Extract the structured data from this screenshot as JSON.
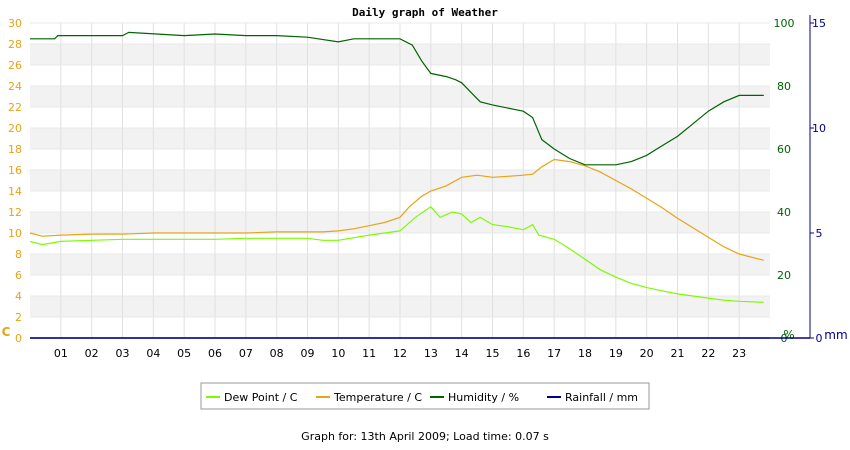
{
  "footer": {
    "graph_for": "Graph for: 13th April 2009; Load time: 0.07 s"
  },
  "chart_data": {
    "type": "line",
    "title": "Daily graph of Weather",
    "x": {
      "label": "",
      "range": [
        0,
        24
      ],
      "ticks": [
        "01",
        "02",
        "03",
        "04",
        "05",
        "06",
        "07",
        "08",
        "09",
        "10",
        "11",
        "12",
        "13",
        "14",
        "15",
        "16",
        "17",
        "18",
        "19",
        "20",
        "21",
        "22",
        "23"
      ]
    },
    "axes": {
      "left": {
        "unit": "C",
        "range": [
          0,
          30
        ],
        "ticks": [
          "0",
          "2",
          "4",
          "6",
          "8",
          "10",
          "12",
          "14",
          "16",
          "18",
          "20",
          "22",
          "24",
          "26",
          "28",
          "30"
        ],
        "color": "#e8a317"
      },
      "right_humidity": {
        "unit": "%",
        "range": [
          0,
          100
        ],
        "ticks": [
          "0",
          "20",
          "40",
          "60",
          "80",
          "100"
        ],
        "color": "#006400"
      },
      "right_rain": {
        "unit": "mm",
        "range": [
          0,
          15
        ],
        "ticks": [
          "0",
          "5",
          "10",
          "15"
        ],
        "color": "#00008b"
      }
    },
    "grid": true,
    "legend_position": "bottom-center",
    "series": [
      {
        "name": "Dew Point / C",
        "axis": "left",
        "color": "#7cfc00",
        "points": [
          [
            0,
            9.2
          ],
          [
            0.4,
            8.9
          ],
          [
            1,
            9.2
          ],
          [
            2,
            9.3
          ],
          [
            3,
            9.4
          ],
          [
            4,
            9.4
          ],
          [
            5,
            9.4
          ],
          [
            6,
            9.4
          ],
          [
            7,
            9.5
          ],
          [
            8,
            9.5
          ],
          [
            9,
            9.5
          ],
          [
            9.5,
            9.3
          ],
          [
            10,
            9.3
          ],
          [
            11,
            9.8
          ],
          [
            12,
            10.2
          ],
          [
            12.5,
            11.5
          ],
          [
            13,
            12.5
          ],
          [
            13.3,
            11.5
          ],
          [
            13.7,
            12
          ],
          [
            14,
            11.8
          ],
          [
            14.3,
            11
          ],
          [
            14.6,
            11.5
          ],
          [
            15,
            10.8
          ],
          [
            15.5,
            10.6
          ],
          [
            16,
            10.3
          ],
          [
            16.3,
            10.8
          ],
          [
            16.5,
            9.8
          ],
          [
            17,
            9.4
          ],
          [
            17.5,
            8.5
          ],
          [
            18,
            7.5
          ],
          [
            18.5,
            6.5
          ],
          [
            19,
            5.8
          ],
          [
            19.5,
            5.2
          ],
          [
            20,
            4.8
          ],
          [
            20.5,
            4.5
          ],
          [
            21,
            4.2
          ],
          [
            21.5,
            4.0
          ],
          [
            22,
            3.8
          ],
          [
            22.5,
            3.6
          ],
          [
            23,
            3.5
          ],
          [
            23.8,
            3.4
          ]
        ]
      },
      {
        "name": "Temperature / C",
        "axis": "left",
        "color": "#e8a317",
        "points": [
          [
            0,
            10.0
          ],
          [
            0.4,
            9.7
          ],
          [
            1,
            9.8
          ],
          [
            2,
            9.9
          ],
          [
            3,
            9.9
          ],
          [
            4,
            10.0
          ],
          [
            5,
            10.0
          ],
          [
            6,
            10.0
          ],
          [
            7,
            10.0
          ],
          [
            8,
            10.1
          ],
          [
            9,
            10.1
          ],
          [
            9.5,
            10.1
          ],
          [
            10,
            10.2
          ],
          [
            10.5,
            10.4
          ],
          [
            11,
            10.7
          ],
          [
            11.5,
            11.0
          ],
          [
            12,
            11.5
          ],
          [
            12.3,
            12.5
          ],
          [
            12.7,
            13.5
          ],
          [
            13,
            14.0
          ],
          [
            13.5,
            14.5
          ],
          [
            14,
            15.3
          ],
          [
            14.5,
            15.5
          ],
          [
            15,
            15.3
          ],
          [
            15.5,
            15.4
          ],
          [
            16,
            15.5
          ],
          [
            16.3,
            15.6
          ],
          [
            16.6,
            16.3
          ],
          [
            17,
            17.0
          ],
          [
            17.5,
            16.8
          ],
          [
            18,
            16.4
          ],
          [
            18.5,
            15.8
          ],
          [
            19,
            15.0
          ],
          [
            19.5,
            14.2
          ],
          [
            20,
            13.3
          ],
          [
            20.5,
            12.4
          ],
          [
            21,
            11.4
          ],
          [
            21.5,
            10.5
          ],
          [
            22,
            9.6
          ],
          [
            22.5,
            8.7
          ],
          [
            23,
            8.0
          ],
          [
            23.8,
            7.4
          ]
        ]
      },
      {
        "name": "Humidity / %",
        "axis": "right_humidity",
        "color": "#006400",
        "points": [
          [
            0,
            95
          ],
          [
            0.8,
            95
          ],
          [
            0.9,
            96
          ],
          [
            3,
            96
          ],
          [
            3.2,
            97
          ],
          [
            5,
            96
          ],
          [
            6,
            96.5
          ],
          [
            7,
            96
          ],
          [
            8,
            96
          ],
          [
            9,
            95.5
          ],
          [
            10,
            94
          ],
          [
            10.5,
            95
          ],
          [
            11,
            95
          ],
          [
            12,
            95
          ],
          [
            12.4,
            93
          ],
          [
            12.7,
            88
          ],
          [
            13,
            84
          ],
          [
            13.5,
            83
          ],
          [
            13.8,
            82
          ],
          [
            14,
            81
          ],
          [
            14.3,
            78
          ],
          [
            14.6,
            75
          ],
          [
            15,
            74
          ],
          [
            15.5,
            73
          ],
          [
            16,
            72
          ],
          [
            16.3,
            70
          ],
          [
            16.6,
            63
          ],
          [
            17,
            60
          ],
          [
            17.5,
            57
          ],
          [
            18,
            55
          ],
          [
            18.5,
            55
          ],
          [
            19,
            55
          ],
          [
            19.5,
            56
          ],
          [
            20,
            58
          ],
          [
            20.5,
            61
          ],
          [
            21,
            64
          ],
          [
            21.5,
            68
          ],
          [
            22,
            72
          ],
          [
            22.5,
            75
          ],
          [
            23,
            77
          ],
          [
            23.8,
            77
          ]
        ]
      },
      {
        "name": "Rainfall / mm",
        "axis": "right_rain",
        "color": "#00008b",
        "points": [
          [
            0,
            0
          ],
          [
            24,
            0
          ]
        ]
      }
    ]
  }
}
